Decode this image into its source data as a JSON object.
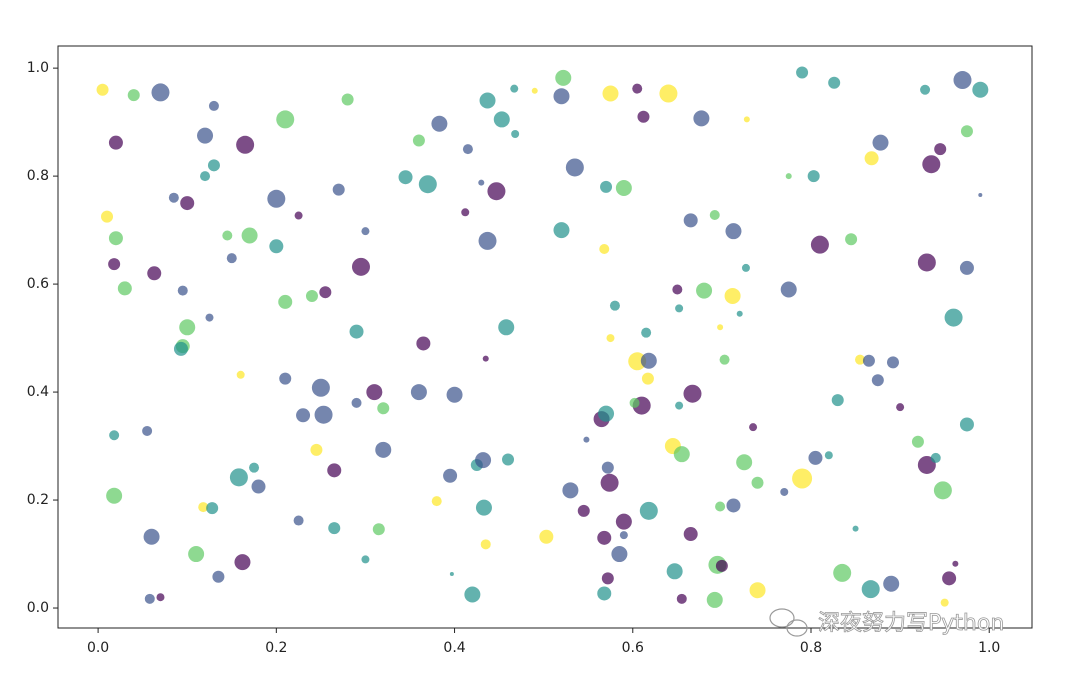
{
  "chart_data": {
    "type": "scatter",
    "xlim": [
      -0.045,
      1.048
    ],
    "ylim": [
      -0.037,
      1.041
    ],
    "xticks": [
      {
        "value": 0,
        "label": "0.0"
      },
      0.2,
      0.4,
      0.6,
      0.8,
      {
        "value": 1,
        "label": "1.0"
      }
    ],
    "yticks": [
      {
        "value": 0,
        "label": "0.0"
      },
      0.2,
      0.4,
      0.6,
      0.8,
      {
        "value": 1,
        "label": "1.0"
      }
    ],
    "alpha": 0.7,
    "watermark": "深夜努力写Python",
    "series": [
      {
        "x": [
          0.005,
          0.04,
          0.07,
          0.02,
          0.13,
          0.12,
          0.13,
          0.12,
          0.165,
          0.21,
          0.28,
          0.085,
          0.1,
          0.01,
          0.02,
          0.2,
          0.225,
          0.27,
          0.145,
          0.17,
          0.2,
          0.15,
          0.018,
          0.063,
          0.03,
          0.095,
          0.255,
          0.24,
          0.21,
          0.3,
          0.295,
          0.125,
          0.1,
          0.095,
          0.093,
          0.16,
          0.21,
          0.25,
          0.23,
          0.253,
          0.29,
          0.31,
          0.32,
          0.29,
          0.36,
          0.365,
          0.345,
          0.37,
          0.36,
          0.383,
          0.415,
          0.437,
          0.453,
          0.467,
          0.468,
          0.49,
          0.522,
          0.52,
          0.43,
          0.447,
          0.412,
          0.437,
          0.535,
          0.52,
          0.57,
          0.59,
          0.575,
          0.605,
          0.64,
          0.612,
          0.677,
          0.568,
          0.458,
          0.435,
          0.4,
          0.425,
          0.432,
          0.46,
          0.395,
          0.38,
          0.245,
          0.265,
          0.32,
          0.175,
          0.158,
          0.18,
          0.018,
          0.118,
          0.128,
          0.018,
          0.055,
          0.06,
          0.11,
          0.135,
          0.162,
          0.058,
          0.07,
          0.225,
          0.265,
          0.3,
          0.315,
          0.397,
          0.42,
          0.435,
          0.433,
          0.503,
          0.53,
          0.545,
          0.548,
          0.565,
          0.57,
          0.572,
          0.574,
          0.59,
          0.585,
          0.568,
          0.59,
          0.572,
          0.568,
          0.618,
          0.61,
          0.602,
          0.645,
          0.655,
          0.652,
          0.667,
          0.605,
          0.618,
          0.617,
          0.615,
          0.58,
          0.575,
          0.65,
          0.652,
          0.68,
          0.665,
          0.692,
          0.713,
          0.727,
          0.712,
          0.72,
          0.698,
          0.703,
          0.728,
          0.79,
          0.826,
          0.775,
          0.803,
          0.81,
          0.775,
          0.845,
          0.868,
          0.878,
          0.928,
          0.97,
          0.99,
          0.945,
          0.935,
          0.975,
          0.99,
          0.93,
          0.975,
          0.96,
          0.855,
          0.865,
          0.892,
          0.875,
          0.9,
          0.83,
          0.735,
          0.725,
          0.74,
          0.79,
          0.805,
          0.82,
          0.77,
          0.713,
          0.698,
          0.665,
          0.647,
          0.655,
          0.695,
          0.7,
          0.692,
          0.74,
          0.835,
          0.85,
          0.867,
          0.89,
          0.92,
          0.93,
          0.94,
          0.975,
          0.948,
          0.955,
          0.962,
          0.95
        ],
        "y": [
          0.96,
          0.95,
          0.955,
          0.862,
          0.93,
          0.875,
          0.82,
          0.8,
          0.858,
          0.905,
          0.942,
          0.76,
          0.75,
          0.725,
          0.685,
          0.758,
          0.727,
          0.775,
          0.69,
          0.69,
          0.67,
          0.648,
          0.637,
          0.62,
          0.592,
          0.588,
          0.585,
          0.578,
          0.567,
          0.698,
          0.632,
          0.538,
          0.52,
          0.485,
          0.48,
          0.432,
          0.425,
          0.408,
          0.357,
          0.358,
          0.38,
          0.4,
          0.37,
          0.512,
          0.4,
          0.49,
          0.798,
          0.785,
          0.866,
          0.897,
          0.85,
          0.94,
          0.905,
          0.962,
          0.878,
          0.958,
          0.982,
          0.948,
          0.788,
          0.772,
          0.733,
          0.68,
          0.816,
          0.7,
          0.78,
          0.778,
          0.953,
          0.962,
          0.953,
          0.91,
          0.907,
          0.665,
          0.52,
          0.462,
          0.395,
          0.265,
          0.274,
          0.275,
          0.245,
          0.198,
          0.293,
          0.255,
          0.293,
          0.26,
          0.242,
          0.225,
          0.208,
          0.187,
          0.185,
          0.32,
          0.328,
          0.132,
          0.1,
          0.058,
          0.085,
          0.017,
          0.02,
          0.162,
          0.148,
          0.09,
          0.146,
          0.063,
          0.025,
          0.118,
          0.186,
          0.132,
          0.218,
          0.18,
          0.312,
          0.35,
          0.36,
          0.26,
          0.232,
          0.16,
          0.1,
          0.13,
          0.135,
          0.055,
          0.027,
          0.18,
          0.375,
          0.38,
          0.3,
          0.285,
          0.375,
          0.397,
          0.457,
          0.458,
          0.425,
          0.51,
          0.56,
          0.5,
          0.59,
          0.555,
          0.588,
          0.718,
          0.728,
          0.698,
          0.63,
          0.578,
          0.545,
          0.52,
          0.46,
          0.905,
          0.992,
          0.973,
          0.8,
          0.8,
          0.673,
          0.59,
          0.683,
          0.833,
          0.862,
          0.96,
          0.978,
          0.96,
          0.85,
          0.822,
          0.883,
          0.765,
          0.64,
          0.63,
          0.538,
          0.46,
          0.458,
          0.455,
          0.422,
          0.372,
          0.385,
          0.335,
          0.27,
          0.232,
          0.24,
          0.278,
          0.283,
          0.215,
          0.19,
          0.188,
          0.137,
          0.068,
          0.017,
          0.08,
          0.078,
          0.015,
          0.033,
          0.065,
          0.147,
          0.035,
          0.045,
          0.308,
          0.265,
          0.278,
          0.34,
          0.218,
          0.055,
          0.082,
          0.01
        ],
        "sizes": [
          36,
          36,
          81,
          49,
          25,
          64,
          36,
          25,
          81,
          81,
          36,
          25,
          49,
          36,
          49,
          81,
          16,
          36,
          25,
          64,
          49,
          25,
          36,
          49,
          49,
          25,
          36,
          36,
          49,
          16,
          81,
          16,
          64,
          49,
          49,
          16,
          36,
          81,
          49,
          81,
          25,
          64,
          36,
          49,
          64,
          49,
          49,
          81,
          36,
          64,
          25,
          64,
          64,
          16,
          16,
          9,
          64,
          64,
          9,
          81,
          16,
          81,
          81,
          64,
          36,
          64,
          64,
          25,
          81,
          36,
          64,
          25,
          64,
          9,
          64,
          36,
          64,
          36,
          49,
          25,
          36,
          49,
          64,
          25,
          81,
          49,
          64,
          25,
          36,
          25,
          25,
          64,
          64,
          36,
          64,
          25,
          16,
          25,
          36,
          16,
          36,
          4,
          64,
          25,
          64,
          49,
          64,
          36,
          9,
          64,
          64,
          36,
          81,
          64,
          64,
          49,
          16,
          36,
          49,
          81,
          81,
          25,
          64,
          64,
          16,
          81,
          81,
          64,
          36,
          25,
          25,
          16,
          25,
          16,
          64,
          49,
          25,
          64,
          16,
          64,
          9,
          9,
          25,
          9,
          36,
          36,
          9,
          36,
          81,
          64,
          36,
          49,
          64,
          25,
          81,
          64,
          36,
          81,
          36,
          4,
          81,
          49,
          81,
          25,
          36,
          36,
          36,
          16,
          36,
          16,
          64,
          36,
          100,
          49,
          16,
          16,
          49,
          25,
          49,
          64,
          25,
          81,
          36,
          64,
          64,
          81,
          9,
          81,
          64,
          36,
          81,
          25,
          49,
          81,
          49,
          9,
          16
        ],
        "colors": [
          "#fde725",
          "#5ec962",
          "#3b528b",
          "#440154",
          "#3b528b",
          "#3b528b",
          "#21918c",
          "#21918c",
          "#440154",
          "#5ec962",
          "#5ec962",
          "#3b528b",
          "#440154",
          "#fde725",
          "#5ec962",
          "#3b528b",
          "#440154",
          "#3b528b",
          "#5ec962",
          "#5ec962",
          "#21918c",
          "#3b528b",
          "#440154",
          "#440154",
          "#5ec962",
          "#3b528b",
          "#440154",
          "#5ec962",
          "#5ec962",
          "#3b528b",
          "#440154",
          "#3b528b",
          "#5ec962",
          "#5ec962",
          "#21918c",
          "#fde725",
          "#3b528b",
          "#3b528b",
          "#3b528b",
          "#3b528b",
          "#3b528b",
          "#440154",
          "#5ec962",
          "#21918c",
          "#3b528b",
          "#440154",
          "#21918c",
          "#21918c",
          "#5ec962",
          "#3b528b",
          "#3b528b",
          "#21918c",
          "#21918c",
          "#21918c",
          "#21918c",
          "#fde725",
          "#5ec962",
          "#3b528b",
          "#3b528b",
          "#440154",
          "#440154",
          "#3b528b",
          "#3b528b",
          "#21918c",
          "#21918c",
          "#5ec962",
          "#fde725",
          "#440154",
          "#fde725",
          "#440154",
          "#3b528b",
          "#fde725",
          "#21918c",
          "#440154",
          "#3b528b",
          "#21918c",
          "#3b528b",
          "#21918c",
          "#3b528b",
          "#fde725",
          "#fde725",
          "#440154",
          "#3b528b",
          "#21918c",
          "#21918c",
          "#3b528b",
          "#5ec962",
          "#fde725",
          "#21918c",
          "#21918c",
          "#3b528b",
          "#3b528b",
          "#5ec962",
          "#3b528b",
          "#440154",
          "#3b528b",
          "#440154",
          "#3b528b",
          "#21918c",
          "#21918c",
          "#5ec962",
          "#21918c",
          "#21918c",
          "#fde725",
          "#21918c",
          "#fde725",
          "#3b528b",
          "#440154",
          "#3b528b",
          "#440154",
          "#21918c",
          "#3b528b",
          "#440154",
          "#440154",
          "#3b528b",
          "#440154",
          "#3b528b",
          "#440154",
          "#21918c",
          "#21918c",
          "#440154",
          "#5ec962",
          "#fde725",
          "#5ec962",
          "#21918c",
          "#440154",
          "#fde725",
          "#3b528b",
          "#fde725",
          "#21918c",
          "#21918c",
          "#fde725",
          "#440154",
          "#21918c",
          "#5ec962",
          "#3b528b",
          "#5ec962",
          "#3b528b",
          "#21918c",
          "#fde725",
          "#21918c",
          "#fde725",
          "#5ec962",
          "#fde725",
          "#21918c",
          "#21918c",
          "#5ec962",
          "#21918c",
          "#440154",
          "#3b528b",
          "#5ec962",
          "#fde725",
          "#3b528b",
          "#21918c",
          "#3b528b",
          "#21918c",
          "#440154",
          "#440154",
          "#5ec962",
          "#3b528b",
          "#440154",
          "#3b528b",
          "#21918c",
          "#fde725",
          "#3b528b",
          "#3b528b",
          "#3b528b",
          "#440154",
          "#21918c",
          "#440154",
          "#5ec962",
          "#5ec962",
          "#fde725",
          "#3b528b",
          "#21918c",
          "#3b528b",
          "#3b528b",
          "#5ec962",
          "#440154",
          "#21918c",
          "#440154",
          "#5ec962",
          "#440154",
          "#5ec962",
          "#fde725",
          "#5ec962",
          "#21918c",
          "#21918c",
          "#3b528b",
          "#5ec962",
          "#440154",
          "#21918c",
          "#21918c",
          "#5ec962",
          "#440154",
          "#440154",
          "#fde725"
        ]
      }
    ]
  }
}
